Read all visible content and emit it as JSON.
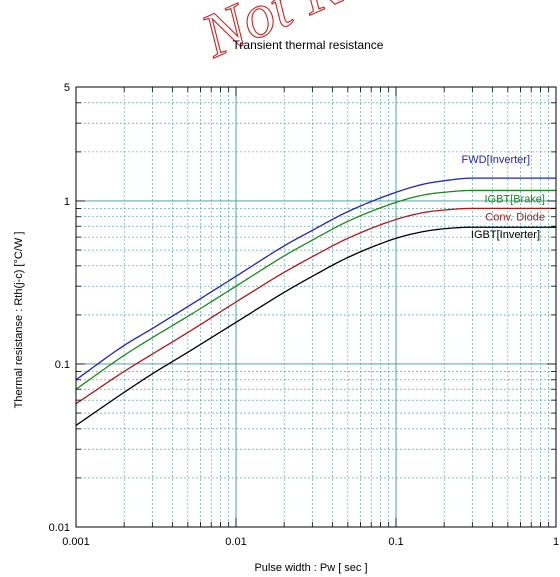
{
  "watermark": "Not R",
  "chart_data": {
    "type": "line",
    "title": "Transient thermal resistance",
    "xlabel": "Pulse width  :  Pw  [ sec ]",
    "ylabel": "Thermal resistanse  :  Rth(j-c)  [°C/W ]",
    "x_scale": "log",
    "y_scale": "log",
    "xlim": [
      0.001,
      1
    ],
    "ylim": [
      0.01,
      5
    ],
    "x_ticks": [
      {
        "value": 0.001,
        "label": "0.001"
      },
      {
        "value": 0.01,
        "label": "0.01"
      },
      {
        "value": 0.1,
        "label": "0.1"
      },
      {
        "value": 1,
        "label": "1"
      }
    ],
    "y_ticks": [
      {
        "value": 0.01,
        "label": "0.01"
      },
      {
        "value": 0.1,
        "label": "0.1"
      },
      {
        "value": 1,
        "label": "1"
      },
      {
        "value": 5,
        "label": "5"
      }
    ],
    "grid": true,
    "grid_color": "#3a9a9a",
    "x": [
      0.001,
      0.002,
      0.003,
      0.005,
      0.01,
      0.02,
      0.03,
      0.05,
      0.1,
      0.15,
      0.2,
      0.3,
      0.5,
      1
    ],
    "series": [
      {
        "name": "FWD[Inverter]",
        "color": "#2323b4",
        "values": [
          0.08,
          0.13,
          0.165,
          0.225,
          0.345,
          0.53,
          0.66,
          0.86,
          1.13,
          1.27,
          1.33,
          1.38,
          1.38,
          1.38
        ]
      },
      {
        "name": "IGBT[Brake]",
        "color": "#1a8a1a",
        "values": [
          0.07,
          0.113,
          0.145,
          0.196,
          0.3,
          0.46,
          0.575,
          0.75,
          0.98,
          1.09,
          1.13,
          1.16,
          1.16,
          1.16
        ]
      },
      {
        "name": "Conv. Diode",
        "color": "#b01818",
        "values": [
          0.057,
          0.09,
          0.115,
          0.156,
          0.24,
          0.365,
          0.455,
          0.59,
          0.77,
          0.85,
          0.88,
          0.9,
          0.9,
          0.9
        ]
      },
      {
        "name": "IGBT[Inverter]",
        "color": "#000000",
        "values": [
          0.042,
          0.067,
          0.087,
          0.118,
          0.18,
          0.275,
          0.345,
          0.45,
          0.59,
          0.65,
          0.675,
          0.69,
          0.69,
          0.69
        ]
      }
    ]
  }
}
